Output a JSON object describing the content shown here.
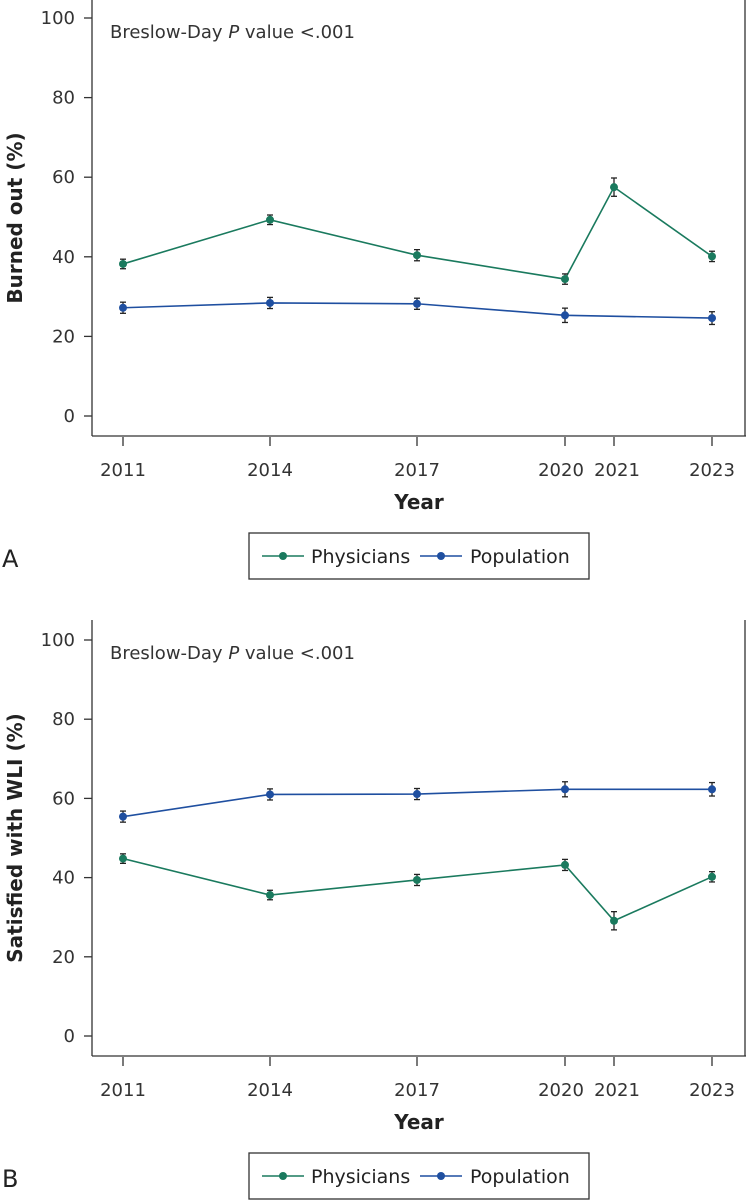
{
  "chart_data": [
    {
      "type": "line",
      "panel_label": "A",
      "annotation_prefix": "Breslow-Day ",
      "annotation_italic": "P",
      "annotation_suffix": " value <.001",
      "xlabel": "Year",
      "ylabel": "Burned out (%)",
      "ylim": [
        0,
        100
      ],
      "yticks": [
        0,
        20,
        40,
        60,
        80,
        100
      ],
      "x": [
        2011,
        2014,
        2017,
        2020,
        2021,
        2023
      ],
      "x_tick_labels": [
        "2011",
        "2014",
        "2017",
        "2020",
        "2021",
        "2023"
      ],
      "series": [
        {
          "name": "Physicians",
          "color": "#1a7a5e",
          "x": [
            2011,
            2014,
            2017,
            2020,
            2021,
            2023
          ],
          "values": [
            38.2,
            49.3,
            40.4,
            34.4,
            57.5,
            40.1
          ],
          "err": [
            1.2,
            1.2,
            1.4,
            1.3,
            2.3,
            1.3
          ]
        },
        {
          "name": "Population",
          "color": "#1f4fa0",
          "x": [
            2011,
            2014,
            2017,
            2020,
            2023
          ],
          "values": [
            27.2,
            28.4,
            28.2,
            25.3,
            24.6
          ],
          "err": [
            1.4,
            1.4,
            1.4,
            1.8,
            1.6
          ]
        }
      ],
      "legend_position": "bottom-center"
    },
    {
      "type": "line",
      "panel_label": "B",
      "annotation_prefix": "Breslow-Day ",
      "annotation_italic": "P",
      "annotation_suffix": " value <.001",
      "xlabel": "Year",
      "ylabel": "Satisfied with WLI (%)",
      "ylim": [
        0,
        100
      ],
      "yticks": [
        0,
        20,
        40,
        60,
        80,
        100
      ],
      "x": [
        2011,
        2014,
        2017,
        2020,
        2021,
        2023
      ],
      "x_tick_labels": [
        "2011",
        "2014",
        "2017",
        "2020",
        "2021",
        "2023"
      ],
      "series": [
        {
          "name": "Physicians",
          "color": "#1a7a5e",
          "x": [
            2011,
            2014,
            2017,
            2020,
            2021,
            2023
          ],
          "values": [
            44.8,
            35.6,
            39.4,
            43.2,
            29.1,
            40.2
          ],
          "err": [
            1.2,
            1.2,
            1.4,
            1.4,
            2.3,
            1.3
          ]
        },
        {
          "name": "Population",
          "color": "#1f4fa0",
          "x": [
            2011,
            2014,
            2017,
            2020,
            2023
          ],
          "values": [
            55.4,
            61.0,
            61.1,
            62.3,
            62.3
          ],
          "err": [
            1.4,
            1.4,
            1.4,
            1.9,
            1.7
          ]
        }
      ],
      "legend_position": "bottom-center"
    }
  ]
}
